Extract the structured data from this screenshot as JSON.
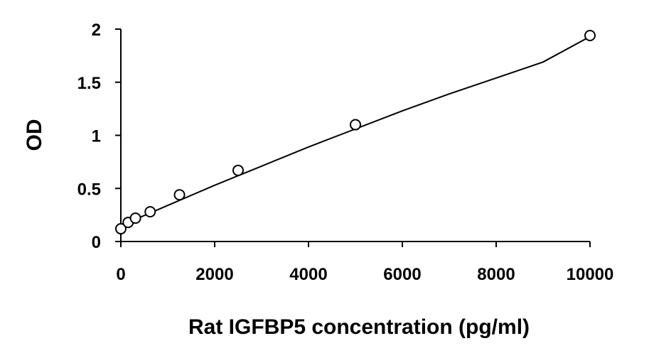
{
  "chart_data": {
    "type": "scatter",
    "xlabel": "Rat IGFBP5 concentration (pg/ml)",
    "ylabel": "OD",
    "xlim": [
      0,
      10000
    ],
    "ylim": [
      0,
      2
    ],
    "x_ticks": [
      0,
      2000,
      4000,
      6000,
      8000,
      10000
    ],
    "y_ticks": [
      0,
      0.5,
      1,
      1.5,
      2
    ],
    "x_tick_labels": [
      "0",
      "2000",
      "4000",
      "6000",
      "8000",
      "10000"
    ],
    "y_tick_labels": [
      "0",
      "0.5",
      "1",
      "1.5",
      "2"
    ],
    "grid": false,
    "legend": "none",
    "series": [
      {
        "marker": "open-circle",
        "x": [
          0,
          156,
          312,
          625,
          1250,
          2500,
          5000,
          10000
        ],
        "y": [
          0.12,
          0.18,
          0.22,
          0.28,
          0.44,
          0.67,
          1.1,
          1.94
        ]
      }
    ],
    "trendline": {
      "type": "polynomial-2",
      "x": [
        0,
        1000,
        2000,
        3000,
        4000,
        5000,
        6000,
        7000,
        8000,
        9000,
        10000
      ],
      "y": [
        0.15,
        0.34,
        0.53,
        0.71,
        0.89,
        1.06,
        1.23,
        1.39,
        1.54,
        1.69,
        1.93
      ]
    },
    "colors": {
      "axis": "#000000",
      "marker_fill": "#ffffff",
      "marker_stroke": "#000000",
      "background": "#ffffff"
    }
  }
}
